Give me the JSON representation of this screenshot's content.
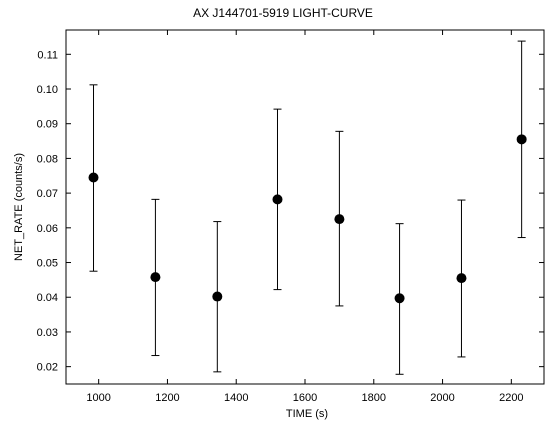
{
  "chart_data": {
    "type": "scatter",
    "title": "AX J144701-5919 LIGHT-CURVE",
    "xlabel": "TIME (s)",
    "ylabel": "NET_RATE (counts/s)",
    "xlim": [
      905,
      2295
    ],
    "ylim": [
      0.015,
      0.117
    ],
    "x_ticks": [
      1000,
      1200,
      1400,
      1600,
      1800,
      2000,
      2200
    ],
    "x_tick_labels": [
      "1000",
      "1200",
      "1400",
      "1600",
      "1800",
      "2000",
      "2200"
    ],
    "y_ticks": [
      0.02,
      0.03,
      0.04,
      0.05,
      0.06,
      0.07,
      0.08,
      0.09,
      0.1,
      0.11
    ],
    "y_tick_labels": [
      "0.02",
      "0.03",
      "0.04",
      "0.05",
      "0.06",
      "0.07",
      "0.08",
      "0.09",
      "0.10",
      "0.11"
    ],
    "grid": false,
    "marker": "filled-circle",
    "points": [
      {
        "x": 985,
        "y": 0.0745,
        "err_low": 0.0475,
        "err_high": 0.1012
      },
      {
        "x": 1165,
        "y": 0.0458,
        "err_low": 0.0232,
        "err_high": 0.0682
      },
      {
        "x": 1345,
        "y": 0.0402,
        "err_low": 0.0185,
        "err_high": 0.0618
      },
      {
        "x": 1520,
        "y": 0.0682,
        "err_low": 0.0422,
        "err_high": 0.0942
      },
      {
        "x": 1700,
        "y": 0.0625,
        "err_low": 0.0375,
        "err_high": 0.0878
      },
      {
        "x": 1875,
        "y": 0.0397,
        "err_low": 0.0178,
        "err_high": 0.0612
      },
      {
        "x": 2055,
        "y": 0.0455,
        "err_low": 0.0228,
        "err_high": 0.068
      },
      {
        "x": 2230,
        "y": 0.0855,
        "err_low": 0.0572,
        "err_high": 0.1138
      }
    ]
  }
}
